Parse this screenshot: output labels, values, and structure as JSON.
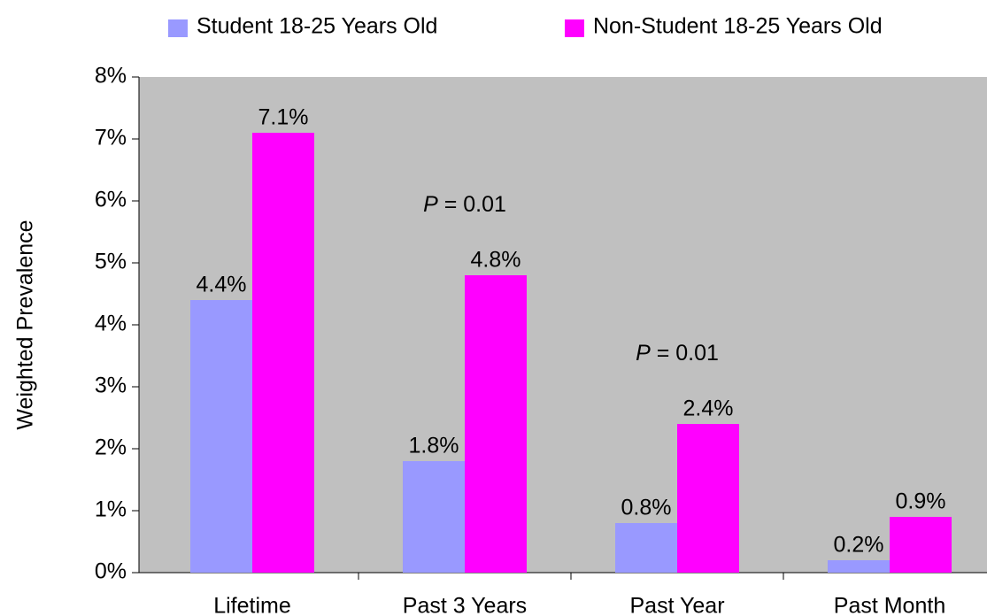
{
  "chart_data": {
    "type": "bar",
    "y_label": "Weighted Prevalence",
    "categories": [
      "Lifetime",
      "Past 3 Years",
      "Past Year",
      "Past Month"
    ],
    "series": [
      {
        "name": "Student 18-25 Years Old",
        "color": "#9999ff",
        "values": [
          4.4,
          1.8,
          0.8,
          0.2
        ],
        "value_labels": [
          "4.4%",
          "1.8%",
          "0.8%",
          "0.2%"
        ]
      },
      {
        "name": "Non-Student 18-25 Years Old",
        "color": "#ff00ff",
        "values": [
          7.1,
          4.8,
          2.4,
          0.9
        ],
        "value_labels": [
          "7.1%",
          "4.8%",
          "2.4%",
          "0.9%"
        ]
      }
    ],
    "annotations": [
      null,
      "P = 0.01",
      "P = 0.01",
      null
    ],
    "ylim": [
      0,
      8
    ],
    "yticks": [
      {
        "value": 0,
        "label": "0%"
      },
      {
        "value": 1,
        "label": "1%"
      },
      {
        "value": 2,
        "label": "2%"
      },
      {
        "value": 3,
        "label": "3%"
      },
      {
        "value": 4,
        "label": "4%"
      },
      {
        "value": 5,
        "label": "5%"
      },
      {
        "value": 6,
        "label": "6%"
      },
      {
        "value": 7,
        "label": "7%"
      },
      {
        "value": 8,
        "label": "8%"
      }
    ],
    "legend": "top",
    "plot_background": "#c0c0c0"
  }
}
